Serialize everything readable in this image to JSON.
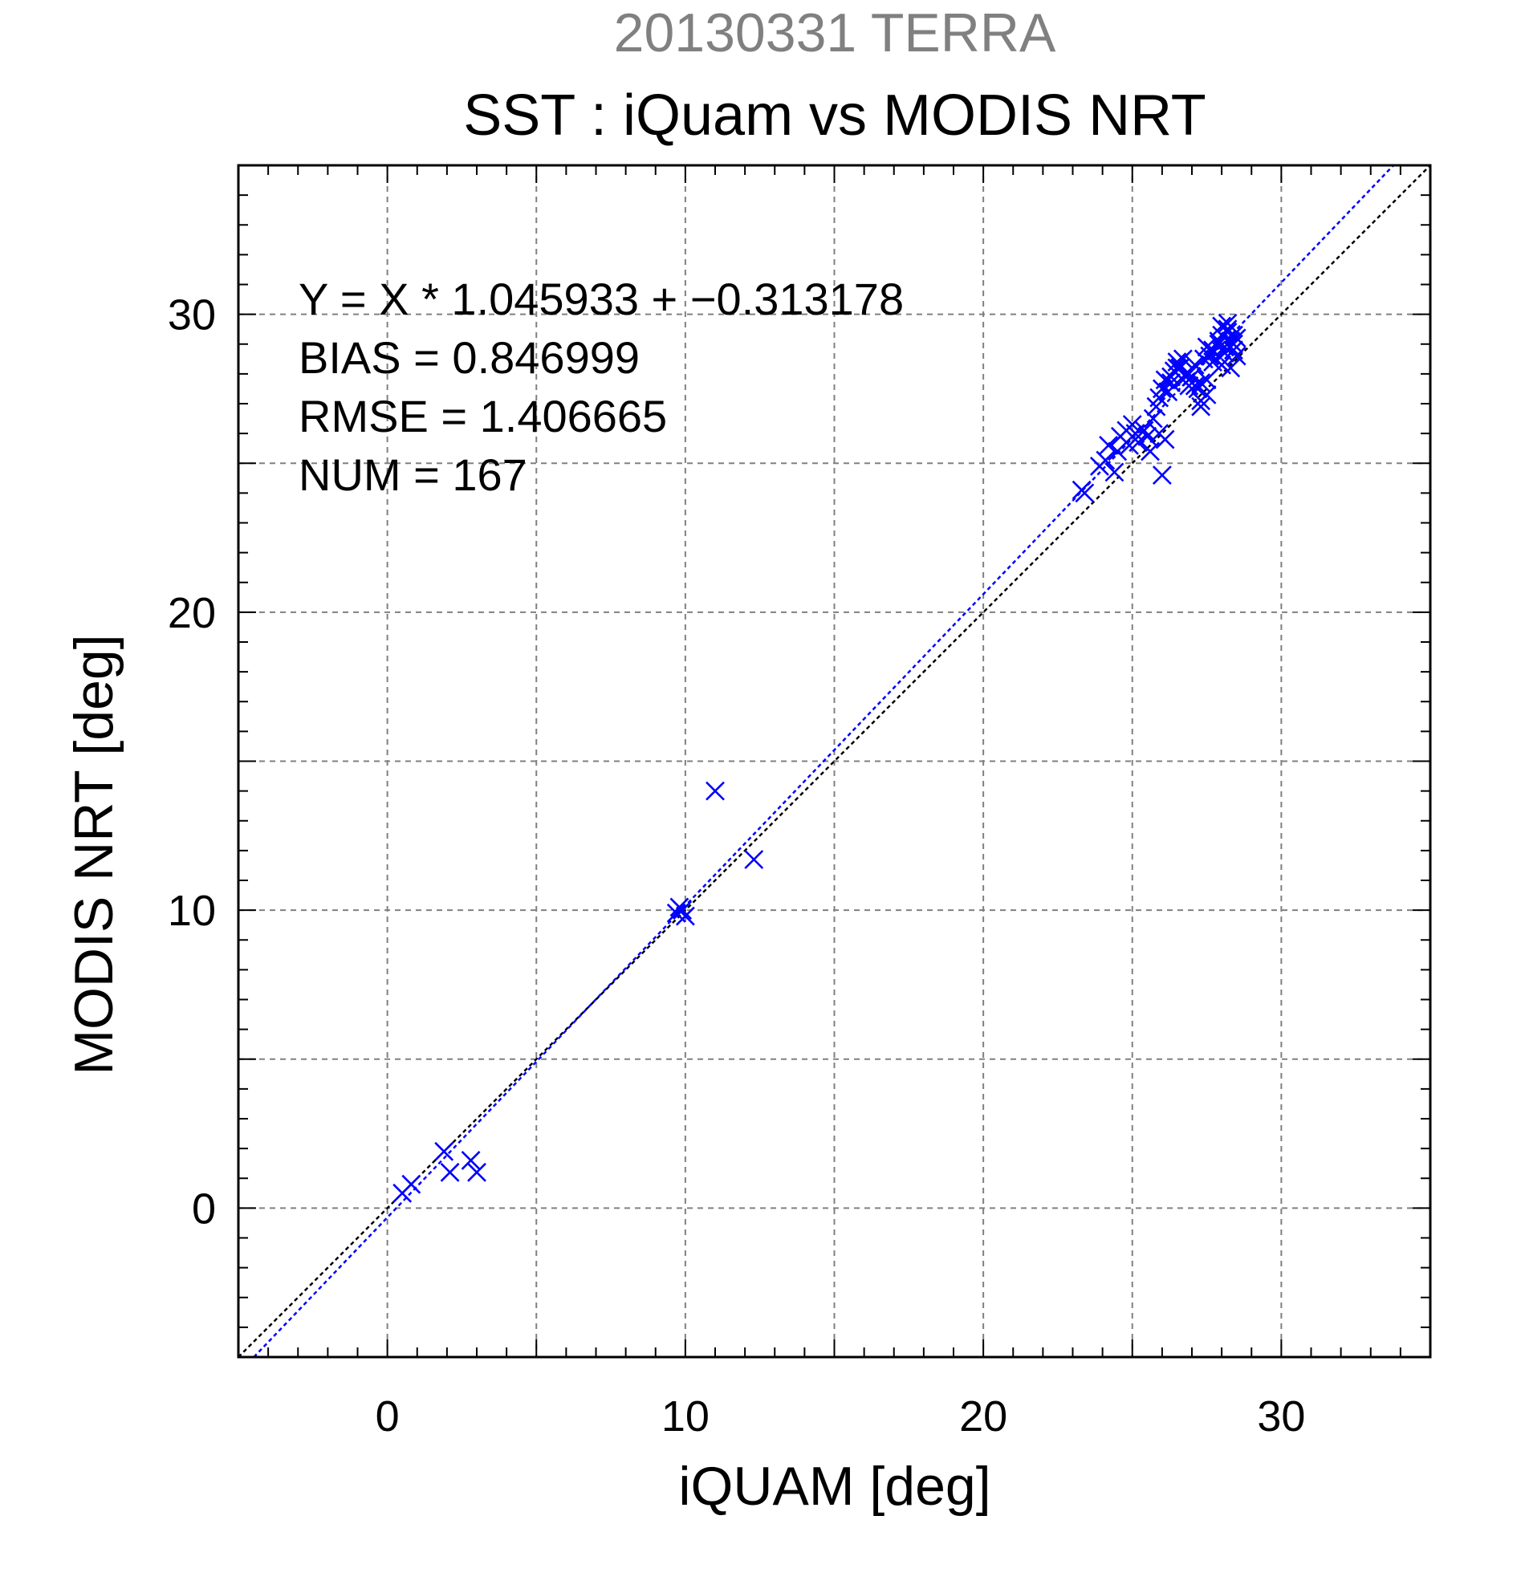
{
  "chart_data": {
    "type": "scatter",
    "suptitle": "20130331 TERRA",
    "title": "SST : iQuam vs MODIS NRT",
    "xlabel": "iQUAM [deg]",
    "ylabel": "MODIS NRT [deg]",
    "xlim": [
      -5,
      35
    ],
    "ylim": [
      -5,
      35
    ],
    "xticks": [
      0,
      10,
      20,
      30
    ],
    "yticks": [
      0,
      10,
      20,
      30
    ],
    "grid": true,
    "stats": [
      "Y = X * 1.045933 + −0.313178",
      "BIAS = 0.846999",
      "RMSE = 1.406665",
      "NUM = 167"
    ],
    "regression": {
      "slope": 1.045933,
      "intercept": -0.313178
    },
    "colors": {
      "points": "#0000ff",
      "regression_line": "#0000ff",
      "identity_line": "#000000",
      "grid": "#808080",
      "suptitle": "#808080"
    },
    "series": [
      {
        "marker": "x",
        "x": [
          0.5,
          0.8,
          1.9,
          2.1,
          2.8,
          3.0,
          9.7,
          9.8,
          9.9,
          10.0,
          11.0,
          12.3,
          23.3,
          23.4,
          23.9,
          24.1,
          24.2,
          24.4,
          24.5,
          24.6,
          24.8,
          24.9,
          25.0,
          25.1,
          25.2,
          25.4,
          25.5,
          25.6,
          25.7,
          25.9,
          26.0,
          26.1,
          25.8,
          25.9,
          26.0,
          26.1,
          26.2,
          26.3,
          26.4,
          26.5,
          26.6,
          26.7,
          26.8,
          26.9,
          27.0,
          27.1,
          27.2,
          27.3,
          27.4,
          27.5,
          27.6,
          27.7,
          26.3,
          26.5,
          26.7,
          26.9,
          27.1,
          27.3,
          27.5,
          27.7,
          27.9,
          28.0,
          28.1,
          28.2,
          28.3,
          28.4,
          28.5,
          27.8,
          27.9,
          28.0,
          28.1,
          28.2,
          28.3,
          28.4,
          28.5,
          28.0,
          28.2,
          28.4,
          27.3,
          27.5
        ],
        "y": [
          0.5,
          0.8,
          1.9,
          1.2,
          1.6,
          1.2,
          9.9,
          10.1,
          10.0,
          9.8,
          14.0,
          11.7,
          24.1,
          24.0,
          24.9,
          25.1,
          25.6,
          24.7,
          25.4,
          25.9,
          26.1,
          25.6,
          26.3,
          26.0,
          25.7,
          26.1,
          25.9,
          25.4,
          26.5,
          26.0,
          24.6,
          25.8,
          26.9,
          27.2,
          27.5,
          27.8,
          27.4,
          27.9,
          28.1,
          28.4,
          28.2,
          27.8,
          28.0,
          27.6,
          27.9,
          28.3,
          27.5,
          27.1,
          28.5,
          27.8,
          28.6,
          28.8,
          27.7,
          28.2,
          28.5,
          28.0,
          27.6,
          26.9,
          27.3,
          28.4,
          29.0,
          29.3,
          28.7,
          29.5,
          29.1,
          28.8,
          29.2,
          28.5,
          29.1,
          29.6,
          28.9,
          29.4,
          28.2,
          29.0,
          28.6,
          28.3,
          29.7,
          29.3,
          27.7,
          28.9
        ]
      }
    ]
  }
}
